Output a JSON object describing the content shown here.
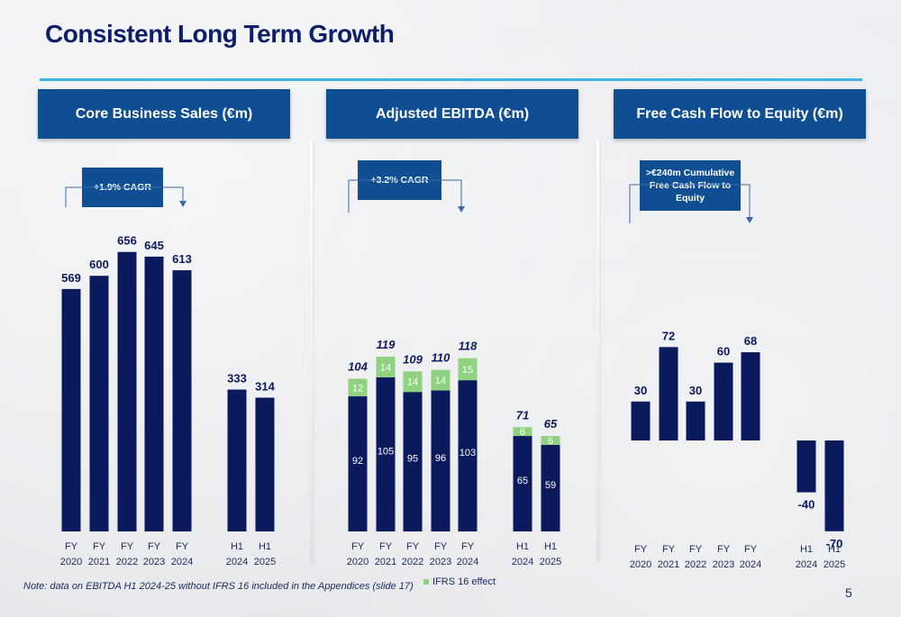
{
  "title": "Consistent Long Term Growth",
  "note": "Note: data on EBITDA H1 2024-25 without IFRS 16 included in the Appendices (slide 17)",
  "page_number": "5",
  "legend_label": "IFRS 16 effect",
  "colors": {
    "bar": "#0a1a5c",
    "ifrs": "#8fd27f",
    "header": "#0f4e93",
    "rule": "#3fb3e3"
  },
  "chart_data": [
    {
      "type": "bar",
      "title": "Core Business Sales (€m)",
      "annotation": "+1.9% CAGR",
      "categories": [
        [
          "FY",
          "2020"
        ],
        [
          "FY",
          "2021"
        ],
        [
          "FY",
          "2022"
        ],
        [
          "FY",
          "2023"
        ],
        [
          "FY",
          "2024"
        ],
        [
          "H1",
          "2024"
        ],
        [
          "H1",
          "2025"
        ]
      ],
      "values": [
        569,
        600,
        656,
        645,
        613,
        333,
        314
      ],
      "ylim": [
        0,
        720
      ]
    },
    {
      "type": "bar",
      "stacked": true,
      "title": "Adjusted EBITDA (€m)",
      "annotation": "+3.2% CAGR",
      "categories": [
        [
          "FY",
          "2020"
        ],
        [
          "FY",
          "2021"
        ],
        [
          "FY",
          "2022"
        ],
        [
          "FY",
          "2023"
        ],
        [
          "FY",
          "2024"
        ],
        [
          "H1",
          "2024"
        ],
        [
          "H1",
          "2025"
        ]
      ],
      "totals": [
        104,
        119,
        109,
        110,
        118,
        71,
        65
      ],
      "series": [
        {
          "values": [
            92,
            105,
            95,
            96,
            103,
            65,
            59
          ]
        },
        {
          "name": "IFRS 16 effect",
          "values": [
            12,
            14,
            14,
            14,
            15,
            6,
            6
          ]
        }
      ],
      "ylim": [
        0,
        200
      ]
    },
    {
      "type": "bar",
      "title": "Free Cash Flow to Equity (€m)",
      "annotation": ">€240m Cumulative Free Cash Flow to Equity",
      "categories": [
        [
          "FY",
          "2020"
        ],
        [
          "FY",
          "2021"
        ],
        [
          "FY",
          "2022"
        ],
        [
          "FY",
          "2023"
        ],
        [
          "FY",
          "2024"
        ],
        [
          "H1",
          "2024"
        ],
        [
          "H1",
          "2025"
        ]
      ],
      "values": [
        30,
        72,
        30,
        60,
        68,
        -40,
        -70
      ],
      "ylim": [
        -70,
        110
      ]
    }
  ]
}
